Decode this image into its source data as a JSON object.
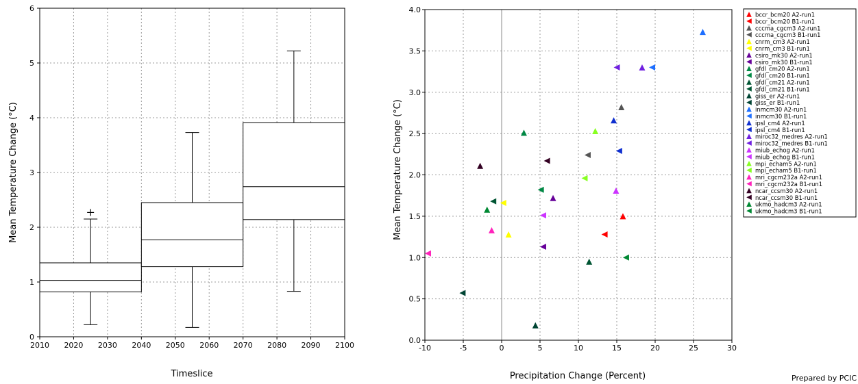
{
  "footer": {
    "credit": "Prepared by PCIC"
  },
  "chart_data": [
    {
      "type": "box",
      "xlabel": "Timeslice",
      "ylabel": "Mean Temperature Change (°C)",
      "xlim": [
        2010,
        2100
      ],
      "ylim": [
        0,
        6
      ],
      "xticks": [
        "2010",
        "2020",
        "2030",
        "2040",
        "2050",
        "2060",
        "2070",
        "2080",
        "2090",
        "2100"
      ],
      "yticks": [
        "0",
        "1",
        "2",
        "3",
        "4",
        "5",
        "6"
      ],
      "grid": true,
      "boxes": [
        {
          "x_start": 2010,
          "x_end": 2040,
          "x_center": 2025,
          "whisker_low": 0.22,
          "q1": 0.82,
          "median": 1.03,
          "q3": 1.35,
          "whisker_high": 2.15,
          "outliers": [
            2.27
          ]
        },
        {
          "x_start": 2040,
          "x_end": 2070,
          "x_center": 2055,
          "whisker_low": 0.17,
          "q1": 1.28,
          "median": 1.77,
          "q3": 2.45,
          "whisker_high": 3.73,
          "outliers": []
        },
        {
          "x_start": 2070,
          "x_end": 2100,
          "x_center": 2085,
          "whisker_low": 0.83,
          "q1": 2.14,
          "median": 2.74,
          "q3": 3.91,
          "whisker_high": 5.22,
          "outliers": []
        }
      ]
    },
    {
      "type": "scatter",
      "xlabel": "Precipitation Change (Percent)",
      "ylabel": "Mean Temperature Change (°C)",
      "xlim": [
        -10,
        30
      ],
      "ylim": [
        0,
        4
      ],
      "xticks": [
        "-10",
        "-5",
        "0",
        "5",
        "10",
        "15",
        "20",
        "25",
        "30"
      ],
      "yticks": [
        "0.0",
        "0.5",
        "1.0",
        "1.5",
        "2.0",
        "2.5",
        "3.0",
        "3.5",
        "4.0"
      ],
      "grid": true,
      "zero_line_x": 0,
      "legend_position": "right",
      "series": [
        {
          "name": "bccr_bcm20 A2-run1",
          "color": "#ff0000",
          "marker": "triangle-up",
          "points": [
            [
              15.8,
              1.5
            ]
          ]
        },
        {
          "name": "bccr_bcm20 B1-run1",
          "color": "#ff0000",
          "marker": "triangle-left",
          "points": [
            [
              13.4,
              1.28
            ]
          ]
        },
        {
          "name": "cccma_cgcm3 A2-run1",
          "color": "#555555",
          "marker": "triangle-up",
          "points": [
            [
              15.6,
              2.82
            ]
          ]
        },
        {
          "name": "cccma_cgcm3 B1-run1",
          "color": "#555555",
          "marker": "triangle-left",
          "points": [
            [
              11.2,
              2.24
            ]
          ]
        },
        {
          "name": "cnrm_cm3 A2-run1",
          "color": "#ffff00",
          "marker": "triangle-up",
          "points": [
            [
              0.9,
              1.28
            ]
          ]
        },
        {
          "name": "cnrm_cm3 B1-run1",
          "color": "#ffff00",
          "marker": "triangle-left",
          "points": [
            [
              0.2,
              1.66
            ]
          ]
        },
        {
          "name": "csiro_mk30 A2-run1",
          "color": "#660099",
          "marker": "triangle-up",
          "points": [
            [
              6.7,
              1.72
            ]
          ]
        },
        {
          "name": "csiro_mk30 B1-run1",
          "color": "#660099",
          "marker": "triangle-left",
          "points": [
            [
              5.4,
              1.13
            ]
          ]
        },
        {
          "name": "gfdl_cm20 A2-run1",
          "color": "#008844",
          "marker": "triangle-up",
          "points": [
            [
              2.9,
              2.51
            ]
          ]
        },
        {
          "name": "gfdl_cm20 B1-run1",
          "color": "#008844",
          "marker": "triangle-left",
          "points": [
            [
              5.1,
              1.82
            ]
          ]
        },
        {
          "name": "gfdl_cm21 A2-run1",
          "color": "#005533",
          "marker": "triangle-up",
          "points": [
            [
              11.4,
              0.95
            ]
          ]
        },
        {
          "name": "gfdl_cm21 B1-run1",
          "color": "#005533",
          "marker": "triangle-left",
          "points": [
            [
              -1.1,
              1.68
            ]
          ]
        },
        {
          "name": "giss_er A2-run1",
          "color": "#004433",
          "marker": "triangle-up",
          "points": [
            [
              4.4,
              0.18
            ]
          ]
        },
        {
          "name": "giss_er B1-run1",
          "color": "#004433",
          "marker": "triangle-left",
          "points": [
            [
              -5.1,
              0.57
            ]
          ]
        },
        {
          "name": "inmcm30 A2-run1",
          "color": "#1e6fff",
          "marker": "triangle-up",
          "points": [
            [
              26.2,
              3.73
            ]
          ]
        },
        {
          "name": "inmcm30 B1-run1",
          "color": "#1e6fff",
          "marker": "triangle-left",
          "points": [
            [
              19.6,
              3.3
            ]
          ]
        },
        {
          "name": "ipsl_cm4 A2-run1",
          "color": "#1030d0",
          "marker": "triangle-up",
          "points": [
            [
              14.6,
              2.66
            ]
          ]
        },
        {
          "name": "ipsl_cm4 B1-run1",
          "color": "#1030d0",
          "marker": "triangle-left",
          "points": [
            [
              15.3,
              2.29
            ]
          ]
        },
        {
          "name": "miroc32_medres A2-run1",
          "color": "#7020e0",
          "marker": "triangle-up",
          "points": [
            [
              18.3,
              3.3
            ]
          ]
        },
        {
          "name": "miroc32_medres B1-run1",
          "color": "#7020e0",
          "marker": "triangle-left",
          "points": [
            [
              15.0,
              3.3
            ]
          ]
        },
        {
          "name": "miub_echog A2-run1",
          "color": "#cc33ff",
          "marker": "triangle-up",
          "points": [
            [
              14.9,
              1.81
            ]
          ]
        },
        {
          "name": "miub_echog B1-run1",
          "color": "#cc33ff",
          "marker": "triangle-left",
          "points": [
            [
              5.4,
              1.51
            ]
          ]
        },
        {
          "name": "mpi_echam5 A2-run1",
          "color": "#88ff22",
          "marker": "triangle-up",
          "points": [
            [
              12.2,
              2.53
            ]
          ]
        },
        {
          "name": "mpi_echam5 B1-run1",
          "color": "#88ff22",
          "marker": "triangle-left",
          "points": [
            [
              10.8,
              1.96
            ]
          ]
        },
        {
          "name": "mri_cgcm232a A2-run1",
          "color": "#ff22bb",
          "marker": "triangle-up",
          "points": [
            [
              -1.3,
              1.33
            ]
          ]
        },
        {
          "name": "mri_cgcm232a B1-run1",
          "color": "#ff22bb",
          "marker": "triangle-left",
          "points": [
            [
              -9.6,
              1.05
            ]
          ]
        },
        {
          "name": "ncar_ccsm30 A2-run1",
          "color": "#330022",
          "marker": "triangle-up",
          "points": [
            [
              -2.8,
              2.11
            ]
          ]
        },
        {
          "name": "ncar_ccsm30 B1-run1",
          "color": "#330022",
          "marker": "triangle-left",
          "points": [
            [
              5.9,
              2.17
            ]
          ]
        },
        {
          "name": "ukmo_hadcm3 A2-run1",
          "color": "#008833",
          "marker": "triangle-up",
          "points": [
            [
              -1.9,
              1.58
            ]
          ]
        },
        {
          "name": "ukmo_hadcm3 B1-run1",
          "color": "#008833",
          "marker": "triangle-left",
          "points": [
            [
              16.2,
              1.0
            ]
          ]
        }
      ]
    }
  ]
}
